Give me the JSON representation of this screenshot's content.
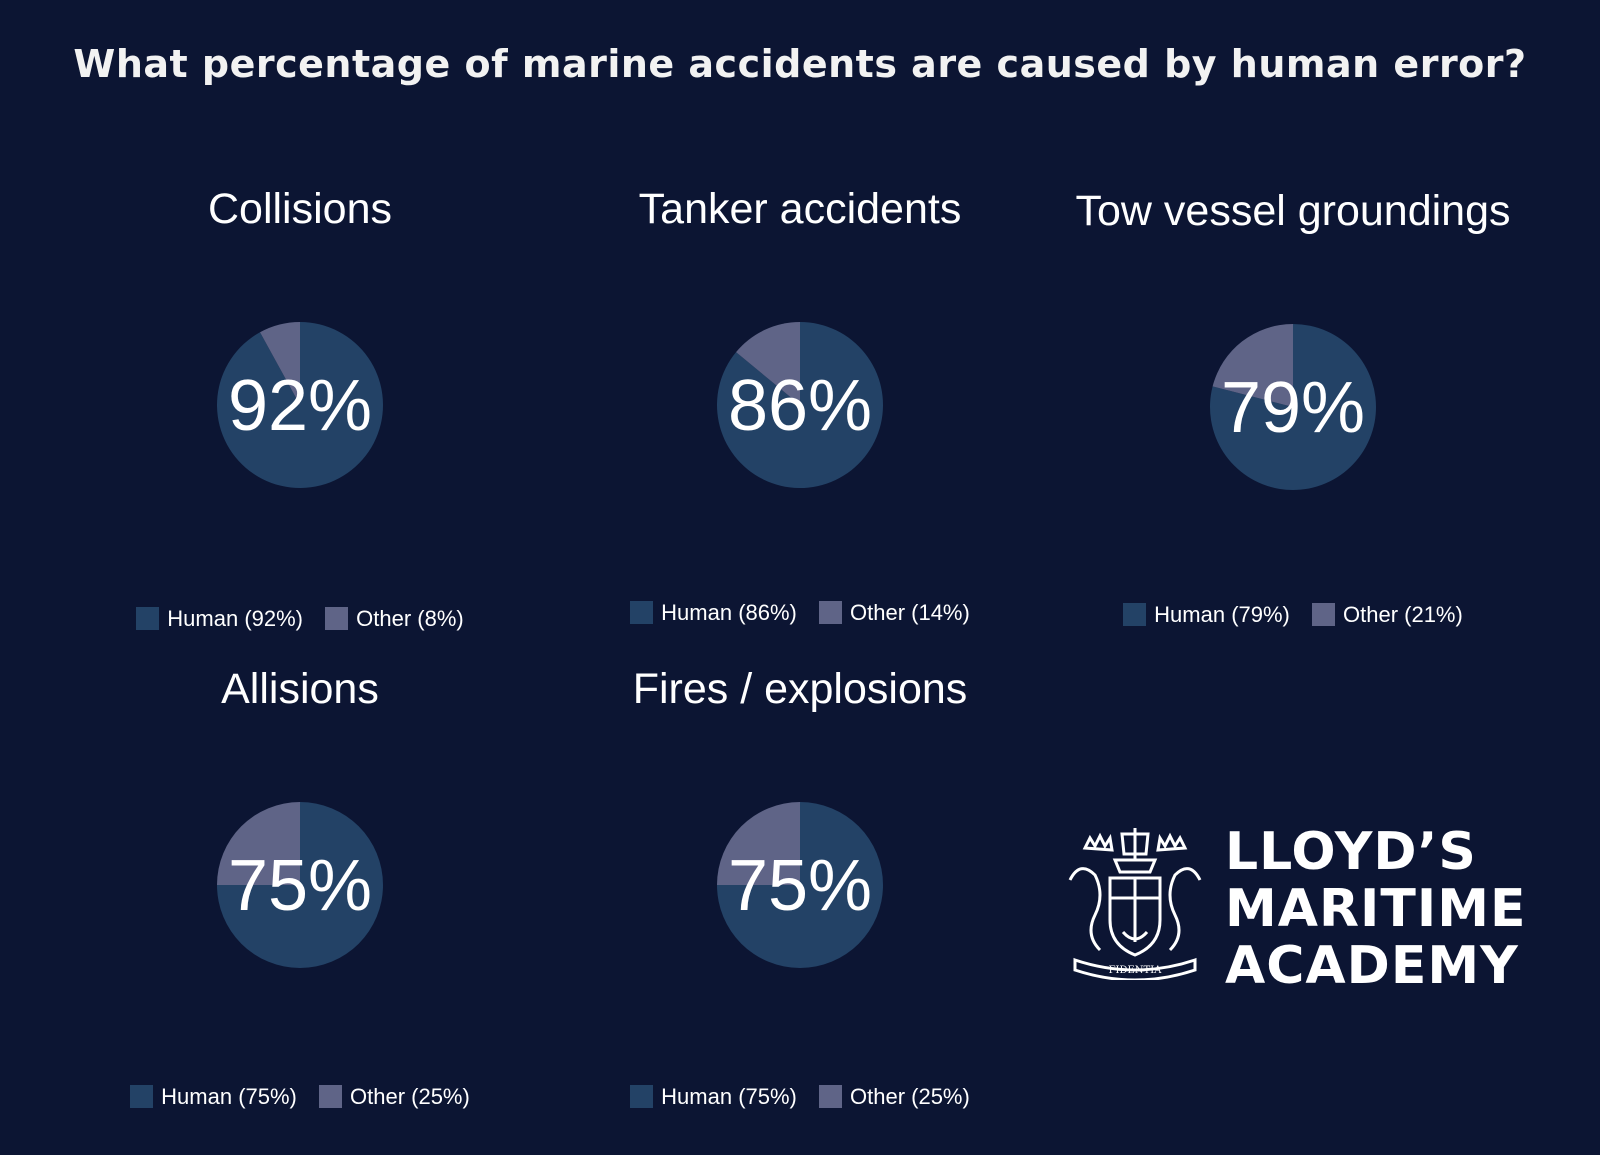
{
  "title": "What percentage of marine accidents are caused by human error?",
  "colors": {
    "background": "#0c1533",
    "human": "#234266",
    "other": "#5f6487"
  },
  "chart_data": [
    {
      "type": "pie",
      "title": "Collisions",
      "center_label": "92%",
      "labels": [
        "Human",
        "Other"
      ],
      "values": [
        92,
        8
      ],
      "legend": [
        "Human (92%)",
        "Other (8%)"
      ],
      "legend_position": "bottom"
    },
    {
      "type": "pie",
      "title": "Tanker accidents",
      "center_label": "86%",
      "labels": [
        "Human",
        "Other"
      ],
      "values": [
        86,
        14
      ],
      "legend": [
        "Human (86%)",
        "Other (14%)"
      ],
      "legend_position": "bottom"
    },
    {
      "type": "pie",
      "title": "Tow vessel groundings",
      "center_label": "79%",
      "labels": [
        "Human",
        "Other"
      ],
      "values": [
        79,
        21
      ],
      "legend": [
        "Human (79%)",
        "Other (21%)"
      ],
      "legend_position": "bottom"
    },
    {
      "type": "pie",
      "title": "Allisions",
      "center_label": "75%",
      "labels": [
        "Human",
        "Other"
      ],
      "values": [
        75,
        25
      ],
      "legend": [
        "Human (75%)",
        "Other (25%)"
      ],
      "legend_position": "bottom"
    },
    {
      "type": "pie",
      "title": "Fires / explosions",
      "center_label": "75%",
      "labels": [
        "Human",
        "Other"
      ],
      "values": [
        75,
        25
      ],
      "legend": [
        "Human (75%)",
        "Other (25%)"
      ],
      "legend_position": "bottom"
    }
  ],
  "logo": {
    "lines": [
      "LLOYD’S",
      "MARITIME",
      "ACADEMY"
    ],
    "motto": "FIDENTIA"
  }
}
